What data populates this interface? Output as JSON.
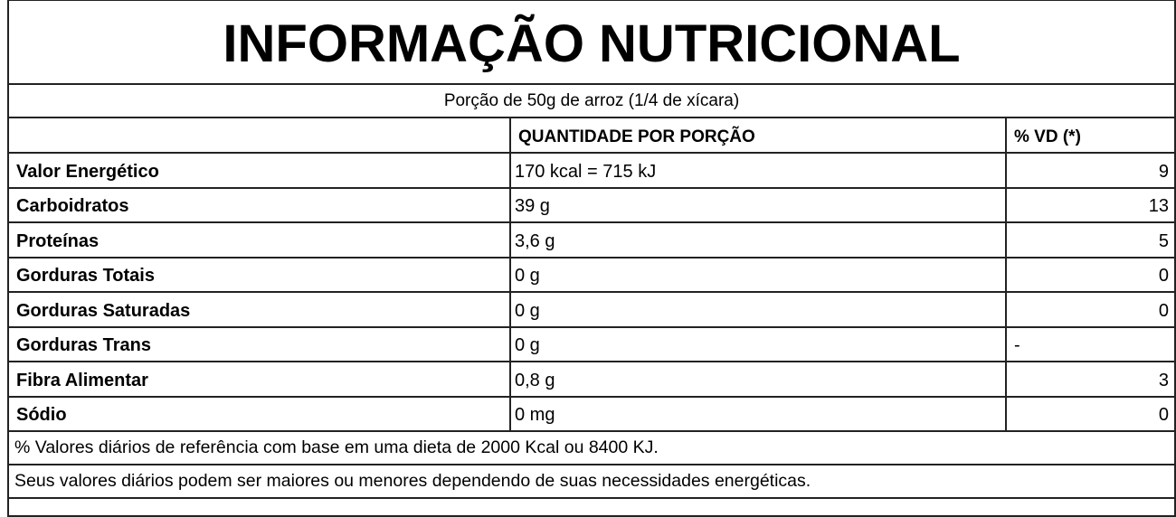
{
  "title": "INFORMAÇÃO NUTRICIONAL",
  "portion": "Porção de 50g de arroz (1/4 de xícara)",
  "headers": {
    "nutrient": "",
    "quantity": "QUANTIDADE POR PORÇÃO",
    "vd": "% VD (*)"
  },
  "rows": [
    {
      "name": "Valor Energético",
      "quantity": "170 kcal = 715 kJ",
      "vd": "9"
    },
    {
      "name": "Carboidratos",
      "quantity": "39 g",
      "vd": "13"
    },
    {
      "name": "Proteínas",
      "quantity": "3,6 g",
      "vd": "5"
    },
    {
      "name": "Gorduras Totais",
      "quantity": "0 g",
      "vd": "0"
    },
    {
      "name": "Gorduras Saturadas",
      "quantity": "0 g",
      "vd": "0"
    },
    {
      "name": "Gorduras Trans",
      "quantity": "0 g",
      "vd": "-"
    },
    {
      "name": "Fibra Alimentar",
      "quantity": "0,8 g",
      "vd": "3"
    },
    {
      "name": "Sódio",
      "quantity": "0 mg",
      "vd": "0"
    }
  ],
  "notes": [
    "% Valores diários de referência com base em uma dieta de 2000 Kcal ou 8400 KJ.",
    "Seus valores diários podem ser maiores ou menores dependendo de suas necessidades energéticas."
  ]
}
